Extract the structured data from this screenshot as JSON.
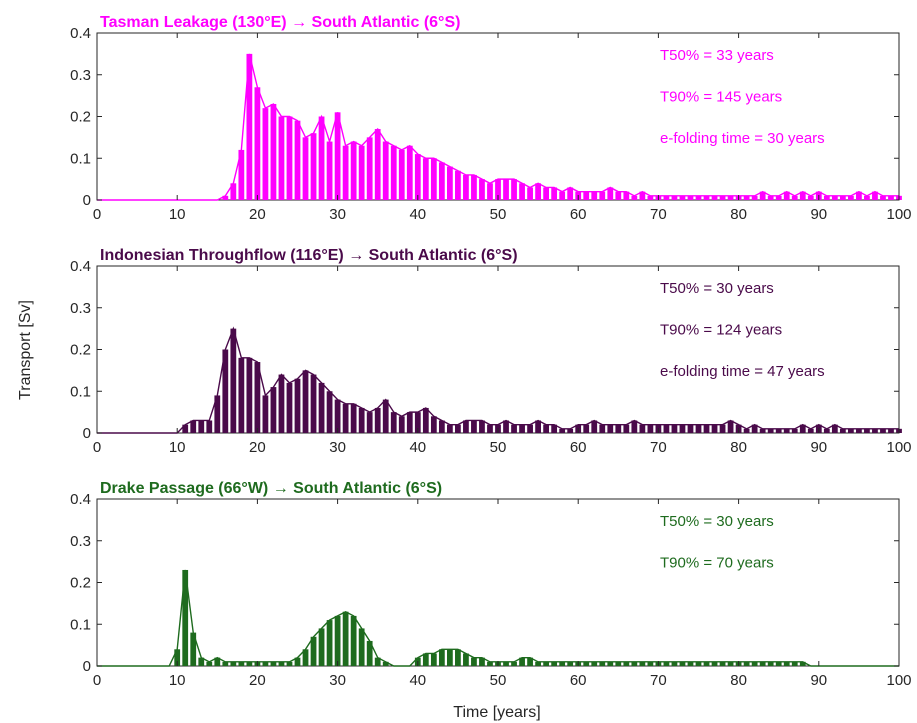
{
  "figure": {
    "ylabel": "Transport [Sv]",
    "xlabel": "Time [years]"
  },
  "chart_data": [
    {
      "type": "bar",
      "title": "Tasman Leakage (130°E) → South Atlantic (6°S)",
      "color": "#ff00ff",
      "xlim": [
        0,
        100
      ],
      "ylim": [
        0,
        0.4
      ],
      "xticks": [
        0,
        10,
        20,
        30,
        40,
        50,
        60,
        70,
        80,
        90,
        100
      ],
      "yticks": [
        0,
        0.1,
        0.2,
        0.3,
        0.4
      ],
      "annotations": [
        "T50% = 33 years",
        "T90% = 145 years",
        "e-folding time = 30 years"
      ],
      "x": [
        0,
        1,
        2,
        3,
        4,
        5,
        6,
        7,
        8,
        9,
        10,
        11,
        12,
        13,
        14,
        15,
        16,
        17,
        18,
        19,
        20,
        21,
        22,
        23,
        24,
        25,
        26,
        27,
        28,
        29,
        30,
        31,
        32,
        33,
        34,
        35,
        36,
        37,
        38,
        39,
        40,
        41,
        42,
        43,
        44,
        45,
        46,
        47,
        48,
        49,
        50,
        51,
        52,
        53,
        54,
        55,
        56,
        57,
        58,
        59,
        60,
        61,
        62,
        63,
        64,
        65,
        66,
        67,
        68,
        69,
        70,
        71,
        72,
        73,
        74,
        75,
        76,
        77,
        78,
        79,
        80,
        81,
        82,
        83,
        84,
        85,
        86,
        87,
        88,
        89,
        90,
        91,
        92,
        93,
        94,
        95,
        96,
        97,
        98,
        99,
        100
      ],
      "values": [
        0,
        0,
        0,
        0,
        0,
        0,
        0,
        0,
        0,
        0,
        0,
        0,
        0,
        0,
        0,
        0,
        0.01,
        0.04,
        0.12,
        0.35,
        0.27,
        0.22,
        0.23,
        0.2,
        0.2,
        0.19,
        0.15,
        0.16,
        0.2,
        0.14,
        0.21,
        0.13,
        0.14,
        0.13,
        0.15,
        0.17,
        0.14,
        0.13,
        0.12,
        0.13,
        0.11,
        0.1,
        0.1,
        0.09,
        0.08,
        0.07,
        0.06,
        0.06,
        0.05,
        0.04,
        0.05,
        0.05,
        0.05,
        0.04,
        0.03,
        0.04,
        0.03,
        0.03,
        0.02,
        0.03,
        0.02,
        0.02,
        0.02,
        0.02,
        0.03,
        0.02,
        0.02,
        0.01,
        0.02,
        0.01,
        0.01,
        0.01,
        0.01,
        0.01,
        0.01,
        0.01,
        0.01,
        0.01,
        0.01,
        0.01,
        0.01,
        0.01,
        0.01,
        0.02,
        0.01,
        0.01,
        0.02,
        0.01,
        0.02,
        0.01,
        0.02,
        0.01,
        0.01,
        0.01,
        0.01,
        0.02,
        0.01,
        0.02,
        0.01,
        0.01,
        0.01
      ]
    },
    {
      "type": "bar",
      "title": "Indonesian Throughflow (116°E) → South Atlantic (6°S)",
      "color": "#4a0a4a",
      "xlim": [
        0,
        100
      ],
      "ylim": [
        0,
        0.4
      ],
      "xticks": [
        0,
        10,
        20,
        30,
        40,
        50,
        60,
        70,
        80,
        90,
        100
      ],
      "yticks": [
        0,
        0.1,
        0.2,
        0.3,
        0.4
      ],
      "annotations": [
        "T50% = 30 years",
        "T90% = 124 years",
        "e-folding time = 47 years"
      ],
      "x": [
        0,
        1,
        2,
        3,
        4,
        5,
        6,
        7,
        8,
        9,
        10,
        11,
        12,
        13,
        14,
        15,
        16,
        17,
        18,
        19,
        20,
        21,
        22,
        23,
        24,
        25,
        26,
        27,
        28,
        29,
        30,
        31,
        32,
        33,
        34,
        35,
        36,
        37,
        38,
        39,
        40,
        41,
        42,
        43,
        44,
        45,
        46,
        47,
        48,
        49,
        50,
        51,
        52,
        53,
        54,
        55,
        56,
        57,
        58,
        59,
        60,
        61,
        62,
        63,
        64,
        65,
        66,
        67,
        68,
        69,
        70,
        71,
        72,
        73,
        74,
        75,
        76,
        77,
        78,
        79,
        80,
        81,
        82,
        83,
        84,
        85,
        86,
        87,
        88,
        89,
        90,
        91,
        92,
        93,
        94,
        95,
        96,
        97,
        98,
        99,
        100
      ],
      "values": [
        0,
        0,
        0,
        0,
        0,
        0,
        0,
        0,
        0,
        0,
        0,
        0.02,
        0.03,
        0.03,
        0.03,
        0.09,
        0.2,
        0.25,
        0.18,
        0.18,
        0.17,
        0.09,
        0.11,
        0.14,
        0.12,
        0.13,
        0.15,
        0.14,
        0.12,
        0.1,
        0.08,
        0.07,
        0.07,
        0.06,
        0.05,
        0.06,
        0.08,
        0.05,
        0.04,
        0.05,
        0.05,
        0.06,
        0.04,
        0.03,
        0.02,
        0.02,
        0.03,
        0.03,
        0.03,
        0.02,
        0.02,
        0.03,
        0.02,
        0.02,
        0.02,
        0.03,
        0.02,
        0.02,
        0.01,
        0.01,
        0.02,
        0.02,
        0.03,
        0.02,
        0.02,
        0.02,
        0.02,
        0.03,
        0.02,
        0.02,
        0.02,
        0.02,
        0.02,
        0.02,
        0.02,
        0.02,
        0.02,
        0.02,
        0.02,
        0.03,
        0.02,
        0.01,
        0.02,
        0.01,
        0.01,
        0.01,
        0.01,
        0.01,
        0.02,
        0.01,
        0.02,
        0.01,
        0.02,
        0.01,
        0.01,
        0.01,
        0.01,
        0.01,
        0.01,
        0.01,
        0.01
      ]
    },
    {
      "type": "bar",
      "title": "Drake Passage (66°W) → South Atlantic (6°S)",
      "color": "#1e6b1e",
      "xlim": [
        0,
        100
      ],
      "ylim": [
        0,
        0.4
      ],
      "xticks": [
        0,
        10,
        20,
        30,
        40,
        50,
        60,
        70,
        80,
        90,
        100
      ],
      "yticks": [
        0,
        0.1,
        0.2,
        0.3,
        0.4
      ],
      "annotations": [
        "T50% = 30 years",
        "T90% = 70 years"
      ],
      "x": [
        0,
        1,
        2,
        3,
        4,
        5,
        6,
        7,
        8,
        9,
        10,
        11,
        12,
        13,
        14,
        15,
        16,
        17,
        18,
        19,
        20,
        21,
        22,
        23,
        24,
        25,
        26,
        27,
        28,
        29,
        30,
        31,
        32,
        33,
        34,
        35,
        36,
        37,
        38,
        39,
        40,
        41,
        42,
        43,
        44,
        45,
        46,
        47,
        48,
        49,
        50,
        51,
        52,
        53,
        54,
        55,
        56,
        57,
        58,
        59,
        60,
        61,
        62,
        63,
        64,
        65,
        66,
        67,
        68,
        69,
        70,
        71,
        72,
        73,
        74,
        75,
        76,
        77,
        78,
        79,
        80,
        81,
        82,
        83,
        84,
        85,
        86,
        87,
        88,
        89,
        90,
        91,
        92,
        93,
        94,
        95,
        96,
        97,
        98,
        99,
        100
      ],
      "values": [
        0,
        0,
        0,
        0,
        0,
        0,
        0,
        0,
        0,
        0,
        0.04,
        0.23,
        0.08,
        0.02,
        0.01,
        0.02,
        0.01,
        0.01,
        0.01,
        0.01,
        0.01,
        0.01,
        0.01,
        0.01,
        0.01,
        0.02,
        0.04,
        0.07,
        0.09,
        0.11,
        0.12,
        0.13,
        0.12,
        0.09,
        0.06,
        0.02,
        0.01,
        0,
        0,
        0,
        0.02,
        0.03,
        0.03,
        0.04,
        0.04,
        0.04,
        0.03,
        0.02,
        0.02,
        0.01,
        0.01,
        0.01,
        0.01,
        0.02,
        0.02,
        0.01,
        0.01,
        0.01,
        0.01,
        0.01,
        0.01,
        0.01,
        0.01,
        0.01,
        0.01,
        0.01,
        0.01,
        0.01,
        0.01,
        0.01,
        0.01,
        0.01,
        0.01,
        0.01,
        0.01,
        0.01,
        0.01,
        0.01,
        0.01,
        0.01,
        0.01,
        0.01,
        0.01,
        0.01,
        0.01,
        0.01,
        0.01,
        0.01,
        0.01,
        0,
        0,
        0,
        0,
        0,
        0,
        0,
        0,
        0,
        0,
        0,
        0
      ]
    }
  ]
}
